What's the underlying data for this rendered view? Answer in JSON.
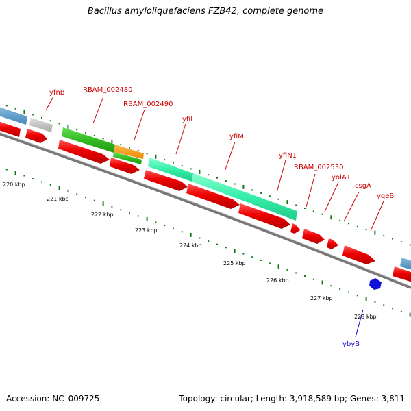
{
  "title": "Bacillus amyloliquefaciens FZB42, complete genome",
  "footer": {
    "accession": "Accession: NC_009725",
    "topology": "Topology: circular; Length: 3,918,589 bp; Genes: 3,811"
  },
  "colors": {
    "forward_label": "#cc0000",
    "reverse_label": "#0000cc",
    "ruler_tick": "#117711",
    "backbone": "#888888"
  },
  "gene_labels": [
    {
      "name": "yfnB",
      "strand": "forward"
    },
    {
      "name": "RBAM_002480",
      "strand": "forward"
    },
    {
      "name": "RBAM_002490",
      "strand": "forward"
    },
    {
      "name": "yfiL",
      "strand": "forward"
    },
    {
      "name": "yfiM",
      "strand": "forward"
    },
    {
      "name": "yfiN1",
      "strand": "forward"
    },
    {
      "name": "RBAM_002530",
      "strand": "forward"
    },
    {
      "name": "yolA1",
      "strand": "forward"
    },
    {
      "name": "csgA",
      "strand": "forward"
    },
    {
      "name": "yqeB",
      "strand": "forward"
    },
    {
      "name": "ybyB",
      "strand": "reverse"
    }
  ],
  "ruler_labels": [
    "220 kbp",
    "221 kbp",
    "222 kbp",
    "223 kbp",
    "224 kbp",
    "225 kbp",
    "226 kbp",
    "227 kbp",
    "228 kbp"
  ]
}
